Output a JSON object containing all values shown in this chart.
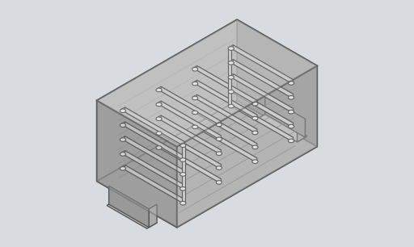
{
  "bg_color": "#d8dce0",
  "box_color": "#555555",
  "fill_light": "#cccccc",
  "fill_mid": "#aaaaaa",
  "fill_dark": "#888888",
  "coil_color": "#333333",
  "coil_fill": "#dddddd",
  "pad_color": "#999999",
  "figsize": [
    5.12,
    3.06
  ],
  "dpi": 100
}
